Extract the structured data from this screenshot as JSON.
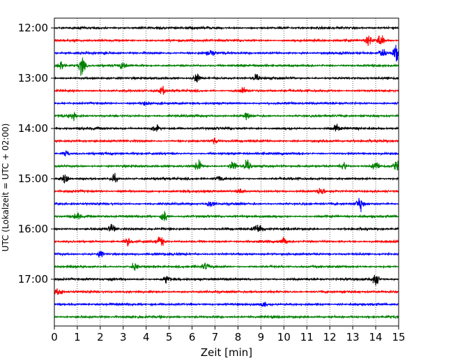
{
  "chart_data": {
    "type": "line",
    "xlabel": "Zeit  [min]",
    "ylabel": "UTC (Lokalzeit = UTC + 02:00)",
    "xlim": [
      0,
      15
    ],
    "x_ticks": [
      0,
      1,
      2,
      3,
      4,
      5,
      6,
      7,
      8,
      9,
      10,
      11,
      12,
      13,
      14,
      15
    ],
    "x_tick_labels": [
      "0",
      "1",
      "2",
      "3",
      "4",
      "5",
      "6",
      "7",
      "8",
      "9",
      "10",
      "11",
      "12",
      "13",
      "14",
      "15"
    ],
    "grid": "vertical dotted",
    "trace_colors": [
      "#000000",
      "#ff0000",
      "#0000ff",
      "#008000"
    ],
    "y_ticks": [
      "12:00",
      "13:00",
      "14:00",
      "15:00",
      "16:00",
      "17:00"
    ],
    "traces": [
      {
        "start": "12:00",
        "color": "#000000",
        "events": []
      },
      {
        "start": "12:15",
        "color": "#ff0000",
        "events": [
          {
            "t": 14.2,
            "amp": 0.55
          },
          {
            "t": 13.7,
            "amp": 0.35
          }
        ]
      },
      {
        "start": "12:30",
        "color": "#0000ff",
        "events": [
          {
            "t": 14.9,
            "amp": 0.7
          },
          {
            "t": 14.3,
            "amp": 0.4
          },
          {
            "t": 6.8,
            "amp": 0.3
          }
        ]
      },
      {
        "start": "12:45",
        "color": "#008000",
        "events": [
          {
            "t": 1.2,
            "amp": 0.8
          },
          {
            "t": 0.3,
            "amp": 0.4
          },
          {
            "t": 3.0,
            "amp": 0.3
          }
        ]
      },
      {
        "start": "13:00",
        "color": "#000000",
        "events": [
          {
            "t": 6.2,
            "amp": 0.45
          },
          {
            "t": 8.8,
            "amp": 0.3
          }
        ]
      },
      {
        "start": "13:15",
        "color": "#ff0000",
        "events": [
          {
            "t": 4.7,
            "amp": 0.35
          },
          {
            "t": 8.2,
            "amp": 0.3
          }
        ]
      },
      {
        "start": "13:30",
        "color": "#0000ff",
        "events": [
          {
            "t": 4.0,
            "amp": 0.25
          }
        ]
      },
      {
        "start": "13:45",
        "color": "#008000",
        "events": [
          {
            "t": 0.8,
            "amp": 0.3
          },
          {
            "t": 8.4,
            "amp": 0.25
          }
        ]
      },
      {
        "start": "14:00",
        "color": "#000000",
        "events": [
          {
            "t": 4.4,
            "amp": 0.35
          },
          {
            "t": 12.3,
            "amp": 0.3
          }
        ]
      },
      {
        "start": "14:15",
        "color": "#ff0000",
        "events": [
          {
            "t": 7.0,
            "amp": 0.25
          }
        ]
      },
      {
        "start": "14:30",
        "color": "#0000ff",
        "events": [
          {
            "t": 0.5,
            "amp": 0.3
          }
        ]
      },
      {
        "start": "14:45",
        "color": "#008000",
        "events": [
          {
            "t": 6.3,
            "amp": 0.6
          },
          {
            "t": 7.8,
            "amp": 0.45
          },
          {
            "t": 8.4,
            "amp": 0.5
          },
          {
            "t": 12.6,
            "amp": 0.4
          },
          {
            "t": 14.0,
            "amp": 0.4
          },
          {
            "t": 14.9,
            "amp": 0.4
          }
        ]
      },
      {
        "start": "15:00",
        "color": "#000000",
        "events": [
          {
            "t": 0.5,
            "amp": 0.4
          },
          {
            "t": 2.6,
            "amp": 0.35
          },
          {
            "t": 7.2,
            "amp": 0.25
          }
        ]
      },
      {
        "start": "15:15",
        "color": "#ff0000",
        "events": [
          {
            "t": 11.6,
            "amp": 0.3
          },
          {
            "t": 8.1,
            "amp": 0.25
          }
        ]
      },
      {
        "start": "15:30",
        "color": "#0000ff",
        "events": [
          {
            "t": 13.3,
            "amp": 0.6
          },
          {
            "t": 6.8,
            "amp": 0.3
          }
        ]
      },
      {
        "start": "15:45",
        "color": "#008000",
        "events": [
          {
            "t": 4.8,
            "amp": 0.55
          },
          {
            "t": 1.0,
            "amp": 0.3
          }
        ]
      },
      {
        "start": "16:00",
        "color": "#000000",
        "events": [
          {
            "t": 2.5,
            "amp": 0.4
          },
          {
            "t": 8.8,
            "amp": 0.35
          },
          {
            "t": 9.0,
            "amp": 0.3
          }
        ]
      },
      {
        "start": "16:15",
        "color": "#ff0000",
        "events": [
          {
            "t": 4.6,
            "amp": 0.55
          },
          {
            "t": 3.2,
            "amp": 0.35
          },
          {
            "t": 10.0,
            "amp": 0.3
          }
        ]
      },
      {
        "start": "16:30",
        "color": "#0000ff",
        "events": [
          {
            "t": 2.0,
            "amp": 0.25
          }
        ]
      },
      {
        "start": "16:45",
        "color": "#008000",
        "events": [
          {
            "t": 3.5,
            "amp": 0.3
          },
          {
            "t": 6.6,
            "amp": 0.3
          }
        ]
      },
      {
        "start": "17:00",
        "color": "#000000",
        "events": [
          {
            "t": 14.0,
            "amp": 0.45
          },
          {
            "t": 4.9,
            "amp": 0.3
          }
        ]
      },
      {
        "start": "17:15",
        "color": "#ff0000",
        "events": [
          {
            "t": 0.2,
            "amp": 0.45
          }
        ]
      },
      {
        "start": "17:30",
        "color": "#0000ff",
        "events": [
          {
            "t": 9.1,
            "amp": 0.25
          }
        ]
      },
      {
        "start": "17:45",
        "color": "#008000",
        "events": []
      }
    ]
  }
}
